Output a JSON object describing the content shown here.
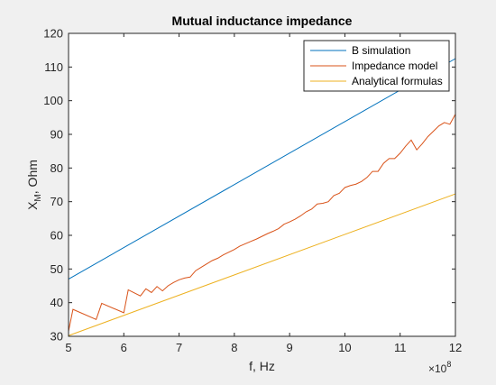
{
  "chart_data": {
    "type": "line",
    "title": "Mutual inductance impedance",
    "xlabel": "f, Hz",
    "ylabel_main": "X",
    "ylabel_sub": "M",
    "ylabel_rest": ", Ohm",
    "x_multiplier_base": "×10",
    "x_multiplier_exp": "8",
    "xlim": [
      5,
      12
    ],
    "ylim": [
      30,
      120
    ],
    "xticks": [
      5,
      6,
      7,
      8,
      9,
      10,
      11,
      12
    ],
    "yticks": [
      30,
      40,
      50,
      60,
      70,
      80,
      90,
      100,
      110,
      120
    ],
    "grid": false,
    "legend_position": "top-right",
    "series": [
      {
        "name": "B simulation",
        "color": "#0072bd",
        "x": [
          5,
          12
        ],
        "y": [
          47,
          112.5
        ]
      },
      {
        "name": "Impedance model",
        "color": "#d95319",
        "x": [
          5.0,
          5.08,
          5.5,
          5.6,
          6.0,
          6.08,
          6.3,
          6.4,
          6.5,
          6.6,
          6.7,
          6.8,
          6.9,
          7.0,
          7.1,
          7.2,
          7.3,
          7.4,
          7.5,
          7.6,
          7.7,
          7.8,
          7.9,
          8.0,
          8.1,
          8.2,
          8.3,
          8.4,
          8.5,
          8.6,
          8.7,
          8.8,
          8.9,
          9.0,
          9.1,
          9.2,
          9.3,
          9.4,
          9.5,
          9.6,
          9.7,
          9.8,
          9.9,
          10.0,
          10.1,
          10.2,
          10.3,
          10.4,
          10.5,
          10.6,
          10.7,
          10.8,
          10.9,
          11.0,
          11.1,
          11.2,
          11.3,
          11.4,
          11.5,
          11.6,
          11.7,
          11.8,
          11.9,
          12.0
        ],
        "y": [
          31.5,
          38,
          35,
          39.8,
          37,
          43.8,
          42,
          44.1,
          43,
          44.8,
          43.5,
          45,
          46,
          46.8,
          47.3,
          47.6,
          49.5,
          50.5,
          51.5,
          52.5,
          53.2,
          54.2,
          55,
          55.8,
          56.8,
          57.5,
          58.2,
          58.9,
          59.7,
          60.5,
          61.2,
          62,
          63.3,
          64,
          64.8,
          65.8,
          67,
          67.8,
          69.3,
          69.5,
          70,
          71.8,
          72.5,
          74.2,
          74.8,
          75.2,
          76,
          77.2,
          79,
          79,
          81.4,
          82.8,
          82.8,
          84.4,
          86.5,
          88.3,
          85.4,
          87.2,
          89.3,
          90.9,
          92.5,
          93.5,
          93,
          96
        ]
      },
      {
        "name": "Analytical formulas",
        "color": "#edb120",
        "x": [
          5,
          12
        ],
        "y": [
          30.2,
          72.3
        ]
      }
    ]
  }
}
